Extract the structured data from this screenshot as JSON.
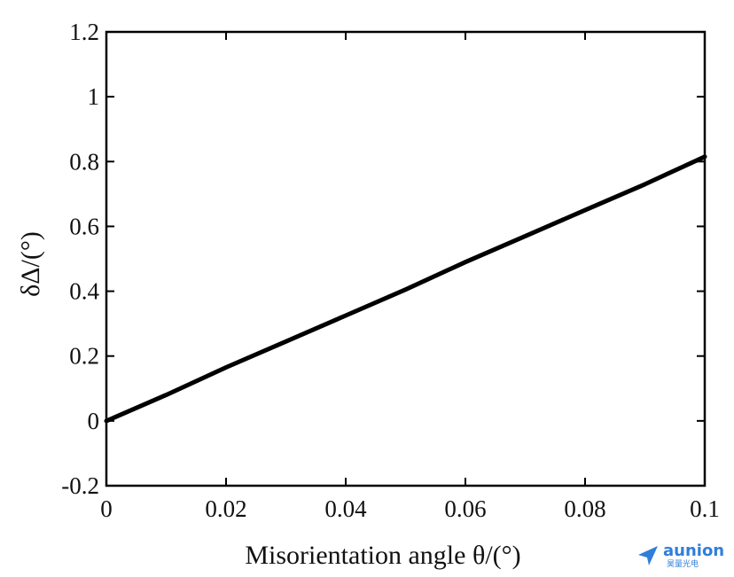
{
  "chart_data": {
    "type": "line",
    "xlabel": "Misorientation angle θ/(°)",
    "ylabel": "δΔ/(°)",
    "xlim": [
      0,
      0.1
    ],
    "ylim": [
      -0.2,
      1.2
    ],
    "x_ticks": [
      "0",
      "0.02",
      "0.04",
      "0.06",
      "0.08",
      "0.1"
    ],
    "y_ticks": [
      "-0.2",
      "0",
      "0.2",
      "0.4",
      "0.6",
      "0.8",
      "1",
      "1.2"
    ],
    "grid": false,
    "series": [
      {
        "x": [
          0,
          0.01,
          0.02,
          0.03,
          0.04,
          0.05,
          0.06,
          0.07,
          0.08,
          0.09,
          0.1
        ],
        "values": [
          0.0,
          0.08,
          0.165,
          0.245,
          0.325,
          0.405,
          0.49,
          0.57,
          0.65,
          0.73,
          0.815
        ],
        "color": "#000000"
      }
    ]
  },
  "watermark": {
    "name": "aunion",
    "sub": "昊量光电"
  }
}
